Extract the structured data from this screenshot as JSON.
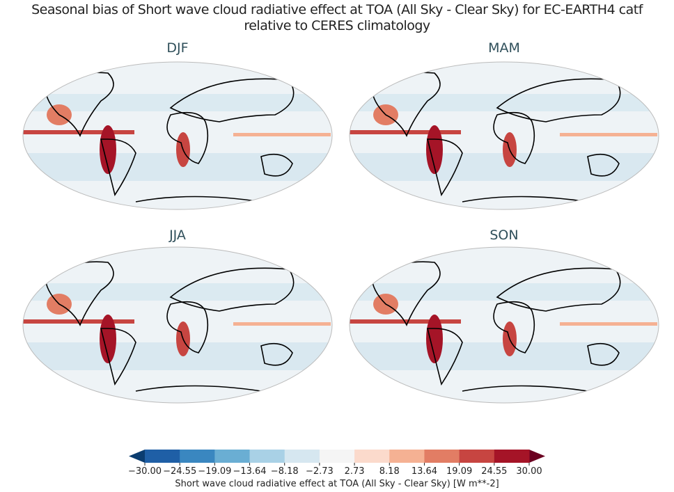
{
  "title_line1": "Seasonal bias of Short wave cloud radiative effect at TOA (All Sky - Clear Sky) for EC-EARTH4 catf",
  "title_line2": "relative to CERES climatology",
  "panels": [
    "DJF",
    "MAM",
    "JJA",
    "SON"
  ],
  "colorbar": {
    "label": "Short wave cloud radiative effect at TOA (All Sky - Clear Sky) [W m**-2]",
    "ticks": [
      "−30.00",
      "−24.55",
      "−19.09",
      "−13.64",
      "−8.18",
      "−2.73",
      "2.73",
      "8.18",
      "13.64",
      "19.09",
      "24.55",
      "30.00"
    ],
    "colors": [
      "#1f5fa6",
      "#3a87c0",
      "#6aaed3",
      "#a9d1e6",
      "#d6e7f0",
      "#f5f5f5",
      "#fbdacc",
      "#f5b193",
      "#e27d64",
      "#c74541",
      "#a51427"
    ],
    "extend_low": "#0b3d70",
    "extend_high": "#6b0020",
    "range": [
      -30,
      30
    ]
  }
}
